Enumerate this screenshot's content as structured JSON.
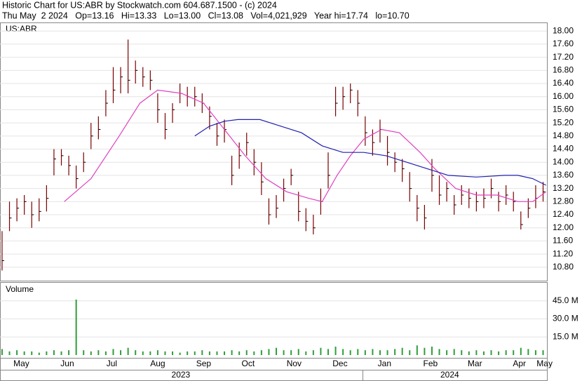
{
  "chart_data": {
    "type": "ohlc",
    "title": "Historic Chart for US:ABR by Stockwatch.com 604.687.1500 - (c) 2024",
    "subtitle": "Thu May  2 2024   Op=13.16   Hi=13.33   Lo=13.00   Cl=13.08   Vol=4,021,929   Year hi=17.74   lo=10.70",
    "symbol": "US:ABR",
    "volume_label": "Volume",
    "color": "#7a0000",
    "volume_color": "#2e9e3a",
    "x": [
      0,
      5,
      10,
      15,
      20,
      25,
      30,
      35,
      40,
      45,
      50,
      55,
      60,
      65,
      70,
      75,
      80,
      85,
      90,
      95,
      100,
      105,
      110,
      115,
      120,
      125,
      130,
      135,
      140,
      145,
      150,
      155,
      160,
      165,
      170,
      175,
      180,
      185,
      190,
      195,
      200,
      205,
      210,
      215,
      220,
      225,
      230,
      235,
      240,
      245,
      250,
      255,
      260,
      265,
      270,
      275,
      280,
      285,
      290,
      295,
      300,
      305,
      310,
      315,
      320,
      325,
      330,
      335,
      340,
      345,
      350,
      355,
      360,
      365
    ],
    "high": [
      11.9,
      12.8,
      12.9,
      13.0,
      12.8,
      12.9,
      13.3,
      14.4,
      14.4,
      14.2,
      13.9,
      14.3,
      15.2,
      15.4,
      16.2,
      16.9,
      16.9,
      17.74,
      17.1,
      16.9,
      16.8,
      16.1,
      15.5,
      15.8,
      16.4,
      16.3,
      16.3,
      16.1,
      15.7,
      15.2,
      15.3,
      14.2,
      14.6,
      14.9,
      14.4,
      14.0,
      12.9,
      13.0,
      13.5,
      13.8,
      13.1,
      12.6,
      12.4,
      13.2,
      14.3,
      16.3,
      16.3,
      16.4,
      16.2,
      15.4,
      15.0,
      15.3,
      14.8,
      14.3,
      14.1,
      13.7,
      13.0,
      12.7,
      14.1,
      13.6,
      13.4,
      13.0,
      13.3,
      13.2,
      13.1,
      13.2,
      13.5,
      13.1,
      13.3,
      13.1,
      12.5,
      12.9,
      13.3,
      13.4
    ],
    "low": [
      10.7,
      11.9,
      12.2,
      12.4,
      12.0,
      12.2,
      12.5,
      13.6,
      13.9,
      13.6,
      13.2,
      13.7,
      14.4,
      14.7,
      15.4,
      15.8,
      16.1,
      16.1,
      16.4,
      16.3,
      16.2,
      15.2,
      14.7,
      15.2,
      15.8,
      15.7,
      15.7,
      15.5,
      15.0,
      14.5,
      14.6,
      13.3,
      13.8,
      14.2,
      13.6,
      13.0,
      12.1,
      12.3,
      12.8,
      13.3,
      12.2,
      11.9,
      11.8,
      12.4,
      13.2,
      15.4,
      15.6,
      15.8,
      15.4,
      14.5,
      14.2,
      14.6,
      13.9,
      13.7,
      13.4,
      12.8,
      12.2,
      11.95,
      13.1,
      12.7,
      12.8,
      12.4,
      12.7,
      12.6,
      12.5,
      12.6,
      12.9,
      12.5,
      12.7,
      12.5,
      11.95,
      12.3,
      12.6,
      12.8
    ],
    "close": [
      11.0,
      12.3,
      12.6,
      12.8,
      12.4,
      12.5,
      12.9,
      14.1,
      14.2,
      13.9,
      13.5,
      14.0,
      14.8,
      15.0,
      15.8,
      16.2,
      16.6,
      16.5,
      16.8,
      16.6,
      16.5,
      15.6,
      15.0,
      15.6,
      16.1,
      16.0,
      16.0,
      15.8,
      15.4,
      14.8,
      15.0,
      13.6,
      14.2,
      14.6,
      14.0,
      13.4,
      12.4,
      12.6,
      13.2,
      13.6,
      12.5,
      12.2,
      12.0,
      12.8,
      13.6,
      15.8,
      16.0,
      16.2,
      15.8,
      14.9,
      14.6,
      15.0,
      14.3,
      14.0,
      13.8,
      13.2,
      12.6,
      12.3,
      13.6,
      13.0,
      13.2,
      12.7,
      13.0,
      12.9,
      12.8,
      12.9,
      13.2,
      12.8,
      13.0,
      12.8,
      12.1,
      12.6,
      12.9,
      13.1
    ],
    "volume": [
      5,
      3,
      4,
      3,
      3,
      2,
      3,
      4,
      3,
      4,
      46,
      4,
      3,
      4,
      3,
      5,
      4,
      6,
      4,
      3,
      3,
      4,
      3,
      3,
      2,
      3,
      3,
      4,
      3,
      3,
      3,
      4,
      3,
      4,
      3,
      4,
      5,
      6,
      4,
      4,
      5,
      3,
      4,
      6,
      5,
      7,
      5,
      4,
      5,
      4,
      5,
      4,
      4,
      5,
      6,
      4,
      8,
      6,
      7,
      5,
      4,
      5,
      4,
      3,
      4,
      3,
      4,
      3,
      4,
      4,
      6,
      5,
      4,
      4
    ],
    "moving_averages": [
      {
        "color": "#e040c0",
        "x": [
          42,
          60,
          79,
          93,
          105,
          121,
          136,
          150,
          164,
          178,
          192,
          207,
          216,
          226,
          235,
          244,
          256,
          268,
          282,
          292,
          306,
          320,
          334,
          348,
          358,
          367
        ],
        "values": [
          12.8,
          13.5,
          14.8,
          15.8,
          16.2,
          16.1,
          15.8,
          15.0,
          14.2,
          13.5,
          13.1,
          12.9,
          12.8,
          13.6,
          14.2,
          14.7,
          15.0,
          14.9,
          14.3,
          13.8,
          13.2,
          13.0,
          13.0,
          12.8,
          12.8,
          13.1
        ]
      },
      {
        "color": "#2020b0",
        "x": [
          130,
          140,
          150,
          159,
          174,
          188,
          202,
          216,
          230,
          244,
          259,
          273,
          287,
          301,
          320,
          339,
          348,
          358,
          367
        ],
        "values": [
          14.8,
          15.1,
          15.25,
          15.3,
          15.3,
          15.1,
          14.9,
          14.5,
          14.3,
          14.3,
          14.2,
          14.0,
          13.8,
          13.6,
          13.55,
          13.6,
          13.6,
          13.5,
          13.3
        ]
      }
    ],
    "xlim": [
      -1.4,
      367.6
    ],
    "xticks": [
      {
        "value": 13,
        "label": "May"
      },
      {
        "value": 44,
        "label": "Jun"
      },
      {
        "value": 74,
        "label": "Jul"
      },
      {
        "value": 105,
        "label": "Aug"
      },
      {
        "value": 136,
        "label": "Sep"
      },
      {
        "value": 166,
        "label": "Oct"
      },
      {
        "value": 197,
        "label": "Nov"
      },
      {
        "value": 228,
        "label": "Dec"
      },
      {
        "value": 258,
        "label": "Jan"
      },
      {
        "value": 289,
        "label": "Feb"
      },
      {
        "value": 319,
        "label": "Mar"
      },
      {
        "value": 349,
        "label": "Apr"
      },
      {
        "value": 366,
        "label": "May"
      }
    ],
    "years": [
      {
        "value": 120.6,
        "label": "2023"
      },
      {
        "value": 302,
        "label": "2024"
      }
    ],
    "ylim": [
      10.39,
      18.24
    ],
    "yticks": [
      {
        "value": 10.8,
        "label": "10.80"
      },
      {
        "value": 11.2,
        "label": "11.20"
      },
      {
        "value": 11.6,
        "label": "11.60"
      },
      {
        "value": 12,
        "label": "12.00"
      },
      {
        "value": 12.4,
        "label": "12.40"
      },
      {
        "value": 12.8,
        "label": "12.80"
      },
      {
        "value": 13.2,
        "label": "13.20"
      },
      {
        "value": 13.6,
        "label": "13.60"
      },
      {
        "value": 14,
        "label": "14.00"
      },
      {
        "value": 14.4,
        "label": "14.40"
      },
      {
        "value": 14.8,
        "label": "14.80"
      },
      {
        "value": 15.2,
        "label": "15.20"
      },
      {
        "value": 15.6,
        "label": "15.60"
      },
      {
        "value": 16,
        "label": "16.00"
      },
      {
        "value": 16.4,
        "label": "16.40"
      },
      {
        "value": 16.8,
        "label": "16.80"
      },
      {
        "value": 17.2,
        "label": "17.20"
      },
      {
        "value": 17.6,
        "label": "17.60"
      },
      {
        "value": 18,
        "label": "18.00"
      }
    ],
    "y2lim": [
      0,
      60
    ],
    "y2ticks": [
      {
        "value": 15,
        "label": "15.0 M"
      },
      {
        "value": 30,
        "label": "30.0 M"
      },
      {
        "value": 45,
        "label": "45.0 M"
      }
    ],
    "grid": true
  }
}
